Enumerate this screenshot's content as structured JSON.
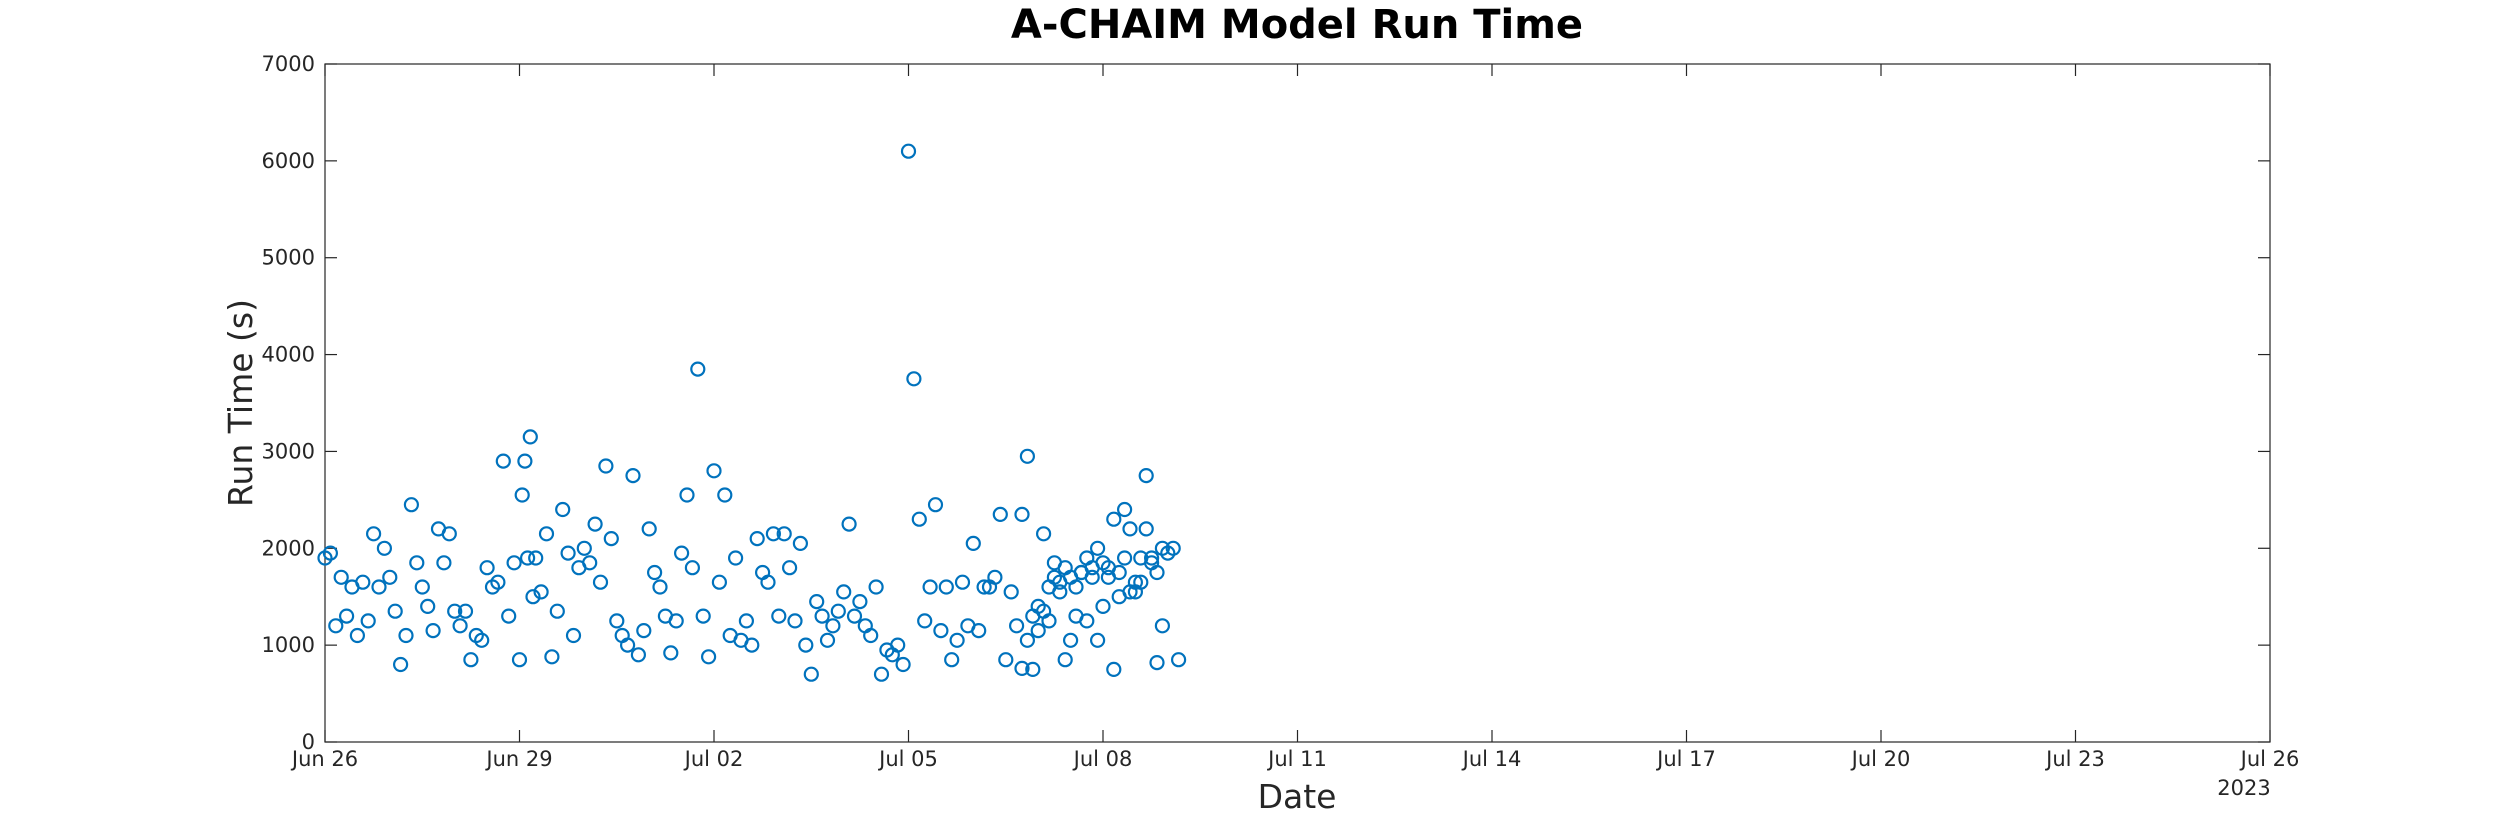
{
  "chart_data": {
    "type": "scatter",
    "title": "A-CHAIM Model Run Time",
    "xlabel": "Date",
    "ylabel": "Run Time (s)",
    "year_label": "2023",
    "x_ticks": [
      "Jun 26",
      "Jun 29",
      "Jul 02",
      "Jul 05",
      "Jul 08",
      "Jul 11",
      "Jul 14",
      "Jul 17",
      "Jul 20",
      "Jul 23",
      "Jul 26"
    ],
    "xlim": [
      "2023-06-26",
      "2023-07-26"
    ],
    "y_ticks": [
      0,
      1000,
      2000,
      3000,
      4000,
      5000,
      6000,
      7000
    ],
    "ylim": [
      0,
      7000
    ],
    "grid": false,
    "marker": "open-circle",
    "color": "#0072BD",
    "series": [
      {
        "points": [
          [
            "2023-06-26T00:00",
            1900
          ],
          [
            "2023-06-26T02:00",
            1950
          ],
          [
            "2023-06-26T04:00",
            1200
          ],
          [
            "2023-06-26T06:00",
            1700
          ],
          [
            "2023-06-26T08:00",
            1300
          ],
          [
            "2023-06-26T10:00",
            1600
          ],
          [
            "2023-06-26T12:00",
            1100
          ],
          [
            "2023-06-26T14:00",
            1650
          ],
          [
            "2023-06-26T16:00",
            1250
          ],
          [
            "2023-06-26T18:00",
            2150
          ],
          [
            "2023-06-26T20:00",
            1600
          ],
          [
            "2023-06-26T22:00",
            2000
          ],
          [
            "2023-06-27T00:00",
            1700
          ],
          [
            "2023-06-27T02:00",
            1350
          ],
          [
            "2023-06-27T04:00",
            800
          ],
          [
            "2023-06-27T06:00",
            1100
          ],
          [
            "2023-06-27T08:00",
            2450
          ],
          [
            "2023-06-27T10:00",
            1850
          ],
          [
            "2023-06-27T12:00",
            1600
          ],
          [
            "2023-06-27T14:00",
            1400
          ],
          [
            "2023-06-27T16:00",
            1150
          ],
          [
            "2023-06-27T18:00",
            2200
          ],
          [
            "2023-06-27T20:00",
            1850
          ],
          [
            "2023-06-27T22:00",
            2150
          ],
          [
            "2023-06-28T00:00",
            1350
          ],
          [
            "2023-06-28T02:00",
            1200
          ],
          [
            "2023-06-28T04:00",
            1350
          ],
          [
            "2023-06-28T06:00",
            850
          ],
          [
            "2023-06-28T08:00",
            1100
          ],
          [
            "2023-06-28T10:00",
            1050
          ],
          [
            "2023-06-28T12:00",
            1800
          ],
          [
            "2023-06-28T14:00",
            1600
          ],
          [
            "2023-06-28T16:00",
            1650
          ],
          [
            "2023-06-28T18:00",
            2900
          ],
          [
            "2023-06-28T20:00",
            1300
          ],
          [
            "2023-06-28T22:00",
            1850
          ],
          [
            "2023-06-29T00:00",
            850
          ],
          [
            "2023-06-29T01:00",
            2550
          ],
          [
            "2023-06-29T02:00",
            2900
          ],
          [
            "2023-06-29T03:00",
            1900
          ],
          [
            "2023-06-29T04:00",
            3150
          ],
          [
            "2023-06-29T05:00",
            1500
          ],
          [
            "2023-06-29T06:00",
            1900
          ],
          [
            "2023-06-29T08:00",
            1550
          ],
          [
            "2023-06-29T10:00",
            2150
          ],
          [
            "2023-06-29T12:00",
            880
          ],
          [
            "2023-06-29T14:00",
            1350
          ],
          [
            "2023-06-29T16:00",
            2400
          ],
          [
            "2023-06-29T18:00",
            1950
          ],
          [
            "2023-06-29T20:00",
            1100
          ],
          [
            "2023-06-29T22:00",
            1800
          ],
          [
            "2023-06-30T00:00",
            2000
          ],
          [
            "2023-06-30T02:00",
            1850
          ],
          [
            "2023-06-30T04:00",
            2250
          ],
          [
            "2023-06-30T06:00",
            1650
          ],
          [
            "2023-06-30T08:00",
            2850
          ],
          [
            "2023-06-30T10:00",
            2100
          ],
          [
            "2023-06-30T12:00",
            1250
          ],
          [
            "2023-06-30T14:00",
            1100
          ],
          [
            "2023-06-30T16:00",
            1000
          ],
          [
            "2023-06-30T18:00",
            2750
          ],
          [
            "2023-06-30T20:00",
            900
          ],
          [
            "2023-06-30T22:00",
            1150
          ],
          [
            "2023-07-01T00:00",
            2200
          ],
          [
            "2023-07-01T02:00",
            1750
          ],
          [
            "2023-07-01T04:00",
            1600
          ],
          [
            "2023-07-01T06:00",
            1300
          ],
          [
            "2023-07-01T08:00",
            920
          ],
          [
            "2023-07-01T10:00",
            1250
          ],
          [
            "2023-07-01T12:00",
            1950
          ],
          [
            "2023-07-01T14:00",
            2550
          ],
          [
            "2023-07-01T16:00",
            1800
          ],
          [
            "2023-07-01T18:00",
            3850
          ],
          [
            "2023-07-01T20:00",
            1300
          ],
          [
            "2023-07-01T22:00",
            880
          ],
          [
            "2023-07-02T00:00",
            2800
          ],
          [
            "2023-07-02T02:00",
            1650
          ],
          [
            "2023-07-02T04:00",
            2550
          ],
          [
            "2023-07-02T06:00",
            1100
          ],
          [
            "2023-07-02T08:00",
            1900
          ],
          [
            "2023-07-02T10:00",
            1050
          ],
          [
            "2023-07-02T12:00",
            1250
          ],
          [
            "2023-07-02T14:00",
            1000
          ],
          [
            "2023-07-02T16:00",
            2100
          ],
          [
            "2023-07-02T18:00",
            1750
          ],
          [
            "2023-07-02T20:00",
            1650
          ],
          [
            "2023-07-02T22:00",
            2150
          ],
          [
            "2023-07-03T00:00",
            1300
          ],
          [
            "2023-07-03T02:00",
            2150
          ],
          [
            "2023-07-03T04:00",
            1800
          ],
          [
            "2023-07-03T06:00",
            1250
          ],
          [
            "2023-07-03T08:00",
            2050
          ],
          [
            "2023-07-03T10:00",
            1000
          ],
          [
            "2023-07-03T12:00",
            700
          ],
          [
            "2023-07-03T14:00",
            1450
          ],
          [
            "2023-07-03T16:00",
            1300
          ],
          [
            "2023-07-03T18:00",
            1050
          ],
          [
            "2023-07-03T20:00",
            1200
          ],
          [
            "2023-07-03T22:00",
            1350
          ],
          [
            "2023-07-04T00:00",
            1550
          ],
          [
            "2023-07-04T02:00",
            2250
          ],
          [
            "2023-07-04T04:00",
            1300
          ],
          [
            "2023-07-04T06:00",
            1450
          ],
          [
            "2023-07-04T08:00",
            1200
          ],
          [
            "2023-07-04T10:00",
            1100
          ],
          [
            "2023-07-04T12:00",
            1600
          ],
          [
            "2023-07-04T14:00",
            700
          ],
          [
            "2023-07-04T16:00",
            950
          ],
          [
            "2023-07-04T18:00",
            900
          ],
          [
            "2023-07-04T20:00",
            1000
          ],
          [
            "2023-07-04T22:00",
            800
          ],
          [
            "2023-07-05T00:00",
            6100
          ],
          [
            "2023-07-05T02:00",
            3750
          ],
          [
            "2023-07-05T04:00",
            2300
          ],
          [
            "2023-07-05T06:00",
            1250
          ],
          [
            "2023-07-05T08:00",
            1600
          ],
          [
            "2023-07-05T10:00",
            2450
          ],
          [
            "2023-07-05T12:00",
            1150
          ],
          [
            "2023-07-05T14:00",
            1600
          ],
          [
            "2023-07-05T16:00",
            850
          ],
          [
            "2023-07-05T18:00",
            1050
          ],
          [
            "2023-07-05T20:00",
            1650
          ],
          [
            "2023-07-05T22:00",
            1200
          ],
          [
            "2023-07-06T00:00",
            2050
          ],
          [
            "2023-07-06T02:00",
            1150
          ],
          [
            "2023-07-06T04:00",
            1600
          ],
          [
            "2023-07-06T06:00",
            1600
          ],
          [
            "2023-07-06T08:00",
            1700
          ],
          [
            "2023-07-06T10:00",
            2350
          ],
          [
            "2023-07-06T12:00",
            850
          ],
          [
            "2023-07-06T14:00",
            1550
          ],
          [
            "2023-07-06T16:00",
            1200
          ],
          [
            "2023-07-06T18:00",
            2350
          ],
          [
            "2023-07-06T20:00",
            2950
          ],
          [
            "2023-07-06T22:00",
            750
          ],
          [
            "2023-07-07T00:00",
            1150
          ],
          [
            "2023-07-07T02:00",
            2150
          ],
          [
            "2023-07-07T04:00",
            1600
          ],
          [
            "2023-07-07T06:00",
            1850
          ],
          [
            "2023-07-07T08:00",
            1650
          ],
          [
            "2023-07-07T10:00",
            850
          ],
          [
            "2023-07-07T12:00",
            1050
          ],
          [
            "2023-07-07T14:00",
            1300
          ],
          [
            "2023-07-07T16:00",
            1750
          ],
          [
            "2023-07-07T18:00",
            1250
          ],
          [
            "2023-07-07T20:00",
            1800
          ],
          [
            "2023-07-07T22:00",
            1050
          ],
          [
            "2023-07-08T00:00",
            1400
          ],
          [
            "2023-07-08T02:00",
            1800
          ],
          [
            "2023-07-08T04:00",
            750
          ],
          [
            "2023-07-08T06:00",
            1500
          ],
          [
            "2023-07-08T08:00",
            1900
          ],
          [
            "2023-07-08T10:00",
            1550
          ],
          [
            "2023-07-08T12:00",
            1550
          ],
          [
            "2023-07-08T14:00",
            1650
          ],
          [
            "2023-07-08T16:00",
            2750
          ],
          [
            "2023-07-08T18:00",
            1900
          ],
          [
            "2023-07-08T20:00",
            820
          ],
          [
            "2023-07-08T22:00",
            1200
          ],
          [
            "2023-07-09T00:00",
            1950
          ],
          [
            "2023-07-09T02:00",
            2000
          ],
          [
            "2023-07-09T04:00",
            850
          ],
          [
            "2023-07-06T18:00",
            760
          ],
          [
            "2023-07-06T20:00",
            1050
          ],
          [
            "2023-07-06T22:00",
            1300
          ],
          [
            "2023-07-07T00:00",
            1400
          ],
          [
            "2023-07-07T02:00",
            1350
          ],
          [
            "2023-07-07T04:00",
            1250
          ],
          [
            "2023-07-07T06:00",
            1700
          ],
          [
            "2023-07-07T08:00",
            1550
          ],
          [
            "2023-07-07T10:00",
            1800
          ],
          [
            "2023-07-07T12:00",
            1700
          ],
          [
            "2023-07-07T14:00",
            1600
          ],
          [
            "2023-07-07T16:00",
            1750
          ],
          [
            "2023-07-07T18:00",
            1900
          ],
          [
            "2023-07-07T20:00",
            1700
          ],
          [
            "2023-07-07T22:00",
            2000
          ],
          [
            "2023-07-08T00:00",
            1850
          ],
          [
            "2023-07-08T02:00",
            1700
          ],
          [
            "2023-07-08T04:00",
            2300
          ],
          [
            "2023-07-08T06:00",
            1750
          ],
          [
            "2023-07-08T08:00",
            2400
          ],
          [
            "2023-07-08T10:00",
            2200
          ],
          [
            "2023-07-08T12:00",
            1650
          ],
          [
            "2023-07-08T14:00",
            1900
          ],
          [
            "2023-07-08T16:00",
            2200
          ],
          [
            "2023-07-08T18:00",
            1850
          ],
          [
            "2023-07-08T20:00",
            1750
          ],
          [
            "2023-07-08T22:00",
            2000
          ]
        ]
      }
    ]
  }
}
